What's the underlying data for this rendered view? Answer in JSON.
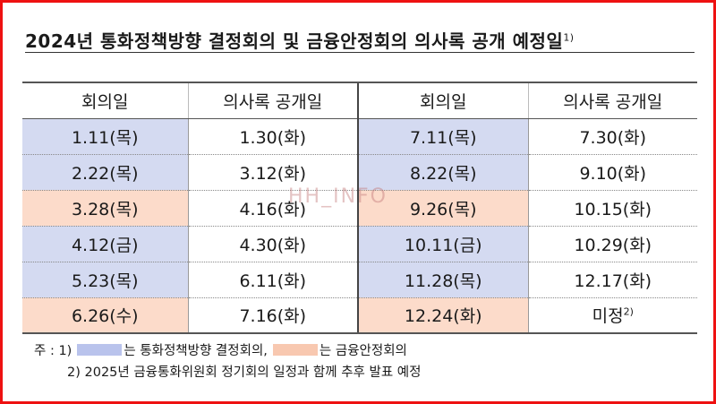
{
  "title": {
    "text": "2024년 통화정책방향 결정회의 및 금융안정회의 의사록 공개 예정일",
    "footnote": "1)"
  },
  "headers": [
    "회의일",
    "의사록 공개일",
    "회의일",
    "의사록 공개일"
  ],
  "rows": [
    {
      "left_date": "1.11(목)",
      "left_release": "1.30(화)",
      "right_date": "7.11(목)",
      "right_release": "7.30(화)"
    },
    {
      "left_date": "2.22(목)",
      "left_release": "3.12(화)",
      "right_date": "8.22(목)",
      "right_release": "9.10(화)"
    },
    {
      "left_date": "3.28(목)",
      "left_release": "4.16(화)",
      "right_date": "9.26(목)",
      "right_release": "10.15(화)"
    },
    {
      "left_date": "4.12(금)",
      "left_release": "4.30(화)",
      "right_date": "10.11(금)",
      "right_release": "10.29(화)"
    },
    {
      "left_date": "5.23(목)",
      "left_release": "6.11(화)",
      "right_date": "11.28(목)",
      "right_release": "12.17(화)"
    },
    {
      "left_date": "6.26(수)",
      "left_release": "7.16(화)",
      "right_date": "12.24(화)",
      "right_release": "미정",
      "right_release_footnote": "2)"
    }
  ],
  "notes": {
    "prefix": "주 : 1)",
    "legend_mpc": "는 통화정책방향 결정회의,",
    "legend_fsc": "는 금융안정회의",
    "note2": "2) 2025년 금융통화위원회 정기회의 일정과 함께 추후 발표 예정"
  },
  "watermark": "HH_INFO",
  "colors": {
    "mpc_meeting": "#d4daf1",
    "fsc_meeting": "#fcdbca",
    "frame_border": "#ee1111"
  }
}
